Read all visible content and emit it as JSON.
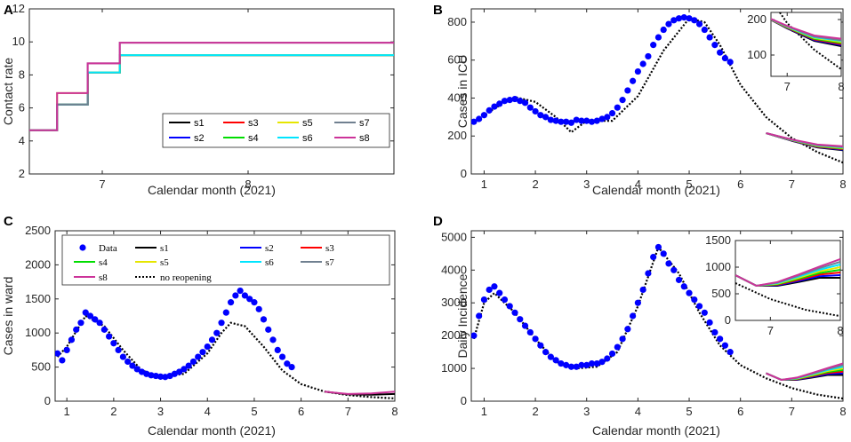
{
  "chart_data": [
    {
      "panel": "A",
      "type": "line",
      "xlabel": "Calendar month (2021)",
      "ylabel": "Contact rate",
      "xlim": [
        6.5,
        9.0
      ],
      "ylim": [
        2,
        12
      ],
      "xticks": [
        7,
        8
      ],
      "yticks": [
        2,
        4,
        6,
        8,
        10,
        12
      ],
      "series": [
        {
          "name": "s1",
          "color": "#000000",
          "x": [
            6.5,
            6.69,
            6.69,
            6.9,
            6.9,
            7.12,
            7.12,
            9.0
          ],
          "y": [
            4.65,
            4.65,
            6.2,
            6.2,
            8.15,
            8.15,
            9.2,
            9.2
          ]
        },
        {
          "name": "s2",
          "color": "#0000ff",
          "x": [
            6.5,
            6.69,
            6.69,
            6.9,
            6.9,
            7.12,
            7.12,
            9.0
          ],
          "y": [
            4.65,
            4.65,
            6.2,
            6.2,
            8.15,
            8.15,
            9.2,
            9.2
          ]
        },
        {
          "name": "s3",
          "color": "#ff0000",
          "x": [
            6.5,
            6.69,
            6.69,
            6.9,
            6.9,
            7.12,
            7.12,
            9.0
          ],
          "y": [
            4.65,
            4.65,
            6.2,
            6.2,
            8.15,
            8.15,
            9.2,
            9.2
          ]
        },
        {
          "name": "s4",
          "color": "#00dd00",
          "x": [
            6.5,
            6.69,
            6.69,
            6.9,
            6.9,
            7.12,
            7.12,
            9.0
          ],
          "y": [
            4.65,
            4.65,
            6.2,
            6.2,
            8.15,
            8.15,
            9.2,
            9.2
          ]
        },
        {
          "name": "s5",
          "color": "#e6e600",
          "x": [
            6.5,
            6.69,
            6.69,
            6.9,
            6.9,
            7.12,
            7.12,
            9.0
          ],
          "y": [
            4.65,
            4.65,
            6.9,
            6.9,
            8.15,
            8.15,
            9.2,
            9.2
          ]
        },
        {
          "name": "s6",
          "color": "#00e5ff",
          "x": [
            6.5,
            6.69,
            6.69,
            6.9,
            6.9,
            7.12,
            7.12,
            9.0
          ],
          "y": [
            4.65,
            4.65,
            6.2,
            6.2,
            8.15,
            8.15,
            9.2,
            9.2
          ]
        },
        {
          "name": "s7",
          "color": "#708090",
          "x": [
            6.5,
            6.69,
            6.69,
            6.9,
            6.9,
            7.12,
            7.12,
            9.0
          ],
          "y": [
            4.65,
            4.65,
            6.2,
            6.2,
            8.7,
            8.7,
            9.95,
            9.95
          ]
        },
        {
          "name": "s8",
          "color": "#cc3399",
          "x": [
            6.5,
            6.69,
            6.69,
            6.9,
            6.9,
            7.12,
            7.12,
            9.0
          ],
          "y": [
            4.65,
            4.65,
            6.9,
            6.9,
            8.7,
            8.7,
            9.95,
            9.95
          ]
        }
      ],
      "legend": [
        "s1",
        "s2",
        "s3",
        "s4",
        "s5",
        "s6",
        "s7",
        "s8"
      ]
    },
    {
      "panel": "B",
      "type": "scatter",
      "xlabel": "Calendar month (2021)",
      "ylabel": "Cases in ICU",
      "xlim": [
        0.75,
        8
      ],
      "ylim": [
        0,
        870
      ],
      "xticks": [
        1,
        2,
        3,
        4,
        5,
        6,
        7,
        8
      ],
      "yticks": [
        0,
        200,
        400,
        600,
        800
      ],
      "data": {
        "x": [
          0.8,
          0.9,
          1.0,
          1.1,
          1.2,
          1.3,
          1.4,
          1.5,
          1.6,
          1.7,
          1.8,
          1.9,
          2.0,
          2.1,
          2.2,
          2.3,
          2.4,
          2.5,
          2.6,
          2.7,
          2.8,
          2.9,
          3.0,
          3.1,
          3.2,
          3.3,
          3.4,
          3.5,
          3.6,
          3.7,
          3.8,
          3.9,
          4.0,
          4.1,
          4.2,
          4.3,
          4.4,
          4.5,
          4.6,
          4.7,
          4.8,
          4.9,
          5.0,
          5.1,
          5.2,
          5.3,
          5.4,
          5.5,
          5.6,
          5.7,
          5.8
        ],
        "y": [
          275,
          290,
          310,
          335,
          355,
          370,
          385,
          390,
          395,
          385,
          375,
          350,
          330,
          310,
          300,
          285,
          280,
          275,
          275,
          270,
          285,
          280,
          280,
          275,
          280,
          290,
          300,
          320,
          350,
          390,
          440,
          490,
          540,
          580,
          620,
          680,
          720,
          760,
          790,
          810,
          820,
          825,
          820,
          810,
          790,
          760,
          720,
          680,
          640,
          610,
          590
        ]
      },
      "baseline": {
        "name": "no reopening",
        "x": [
          0.8,
          1.2,
          1.6,
          2.0,
          2.4,
          2.7,
          3.0,
          3.5,
          4.0,
          4.5,
          5.0,
          5.3,
          5.6,
          6.0,
          6.5,
          7.0,
          7.5,
          8.0
        ],
        "y": [
          270,
          345,
          405,
          380,
          300,
          220,
          280,
          280,
          410,
          650,
          820,
          800,
          680,
          470,
          300,
          190,
          115,
          60
        ]
      },
      "scenarios_x": [
        6.5,
        7.0,
        7.5,
        8.0
      ],
      "scenarios": [
        {
          "name": "s1",
          "y": [
            215,
            175,
            140,
            125
          ]
        },
        {
          "name": "s2",
          "y": [
            215,
            176,
            142,
            128
          ]
        },
        {
          "name": "s3",
          "y": [
            215,
            177,
            144,
            131
          ]
        },
        {
          "name": "s4",
          "y": [
            215,
            178,
            146,
            134
          ]
        },
        {
          "name": "s5",
          "y": [
            215,
            179,
            148,
            137
          ]
        },
        {
          "name": "s6",
          "y": [
            215,
            180,
            150,
            140
          ]
        },
        {
          "name": "s7",
          "y": [
            215,
            181,
            152,
            142
          ]
        },
        {
          "name": "s8",
          "y": [
            215,
            182,
            155,
            146
          ]
        }
      ],
      "inset": {
        "xlim": [
          6.7,
          8
        ],
        "ylim": [
          40,
          220
        ],
        "xticks": [
          7,
          8
        ],
        "yticks": [
          100,
          200
        ]
      }
    },
    {
      "panel": "C",
      "type": "scatter",
      "xlabel": "Calendar month (2021)",
      "ylabel": "Cases in ward",
      "xlim": [
        0.75,
        8
      ],
      "ylim": [
        0,
        2500
      ],
      "xticks": [
        1,
        2,
        3,
        4,
        5,
        6,
        7,
        8
      ],
      "yticks": [
        0,
        500,
        1000,
        1500,
        2000,
        2500
      ],
      "data": {
        "x": [
          0.8,
          0.9,
          1.0,
          1.1,
          1.2,
          1.3,
          1.4,
          1.5,
          1.6,
          1.7,
          1.8,
          1.9,
          2.0,
          2.1,
          2.2,
          2.3,
          2.4,
          2.5,
          2.6,
          2.7,
          2.8,
          2.9,
          3.0,
          3.1,
          3.2,
          3.3,
          3.4,
          3.5,
          3.6,
          3.7,
          3.8,
          3.9,
          4.0,
          4.1,
          4.2,
          4.3,
          4.4,
          4.5,
          4.6,
          4.7,
          4.8,
          4.9,
          5.0,
          5.1,
          5.2,
          5.3,
          5.4,
          5.5,
          5.6,
          5.7,
          5.8
        ],
        "y": [
          700,
          600,
          750,
          900,
          1050,
          1150,
          1300,
          1250,
          1200,
          1150,
          1050,
          950,
          850,
          750,
          650,
          580,
          520,
          470,
          430,
          400,
          380,
          370,
          360,
          355,
          370,
          400,
          430,
          470,
          520,
          580,
          650,
          720,
          800,
          900,
          1000,
          1150,
          1300,
          1450,
          1550,
          1620,
          1550,
          1500,
          1450,
          1350,
          1200,
          1050,
          900,
          750,
          650,
          550,
          500
        ]
      },
      "baseline": {
        "name": "no reopening",
        "x": [
          0.8,
          1.0,
          1.4,
          1.8,
          2.2,
          2.6,
          3.0,
          3.5,
          4.0,
          4.3,
          4.5,
          4.8,
          5.2,
          5.6,
          6.0,
          6.5,
          7.0,
          7.5,
          8.0
        ],
        "y": [
          650,
          800,
          1250,
          1100,
          750,
          450,
          360,
          400,
          700,
          1000,
          1150,
          1100,
          800,
          450,
          250,
          140,
          90,
          60,
          40
        ]
      },
      "scenarios_x": [
        6.5,
        7.0,
        7.5,
        8.0
      ],
      "scenarios": [
        {
          "name": "s1",
          "y": [
            140,
            100,
            95,
            105
          ]
        },
        {
          "name": "s8",
          "y": [
            140,
            105,
            115,
            140
          ]
        }
      ],
      "legend": [
        "Data",
        "s1",
        "s2",
        "s3",
        "s4",
        "s5",
        "s6",
        "s7",
        "s8",
        "no reopening"
      ]
    },
    {
      "panel": "D",
      "type": "scatter",
      "xlabel": "Calendar month (2021)",
      "ylabel": "Daily Incidence",
      "xlim": [
        0.75,
        8
      ],
      "ylim": [
        0,
        5200
      ],
      "xticks": [
        1,
        2,
        3,
        4,
        5,
        6,
        7,
        8
      ],
      "yticks": [
        0,
        1000,
        2000,
        3000,
        4000,
        5000
      ],
      "data": {
        "x": [
          0.8,
          0.9,
          1.0,
          1.1,
          1.2,
          1.3,
          1.4,
          1.5,
          1.6,
          1.7,
          1.8,
          1.9,
          2.0,
          2.1,
          2.2,
          2.3,
          2.4,
          2.5,
          2.6,
          2.7,
          2.8,
          2.9,
          3.0,
          3.1,
          3.2,
          3.3,
          3.4,
          3.5,
          3.6,
          3.7,
          3.8,
          3.9,
          4.0,
          4.1,
          4.2,
          4.3,
          4.4,
          4.5,
          4.6,
          4.7,
          4.8,
          4.9,
          5.0,
          5.1,
          5.2,
          5.3,
          5.4,
          5.5,
          5.6,
          5.7,
          5.8
        ],
        "y": [
          2000,
          2600,
          3100,
          3400,
          3500,
          3300,
          3100,
          2900,
          2700,
          2500,
          2300,
          2100,
          1900,
          1700,
          1500,
          1350,
          1250,
          1150,
          1100,
          1050,
          1050,
          1100,
          1100,
          1150,
          1150,
          1200,
          1300,
          1450,
          1650,
          1900,
          2200,
          2600,
          3000,
          3400,
          3900,
          4400,
          4700,
          4500,
          4200,
          4000,
          3700,
          3500,
          3300,
          3100,
          2900,
          2700,
          2400,
          2100,
          1900,
          1700,
          1500
        ]
      },
      "baseline": {
        "name": "no reopening",
        "x": [
          0.8,
          1.0,
          1.2,
          1.6,
          2.0,
          2.4,
          2.8,
          3.2,
          3.6,
          4.0,
          4.4,
          4.8,
          5.2,
          5.6,
          6.0,
          6.5,
          7.0,
          7.5,
          8.0
        ],
        "y": [
          1900,
          3000,
          3300,
          2700,
          1900,
          1200,
          1000,
          1050,
          1500,
          2900,
          4700,
          3900,
          2700,
          1700,
          1100,
          700,
          400,
          200,
          80
        ]
      },
      "scenarios_x": [
        6.5,
        6.8,
        7.1,
        7.4,
        7.7,
        8.0
      ],
      "scenarios": [
        {
          "name": "s1",
          "y": [
            850,
            650,
            650,
            720,
            800,
            800
          ]
        },
        {
          "name": "s2",
          "y": [
            850,
            650,
            660,
            740,
            830,
            850
          ]
        },
        {
          "name": "s3",
          "y": [
            850,
            650,
            670,
            760,
            860,
            900
          ]
        },
        {
          "name": "s4",
          "y": [
            850,
            650,
            680,
            780,
            890,
            950
          ]
        },
        {
          "name": "s5",
          "y": [
            850,
            650,
            690,
            800,
            920,
            1000
          ]
        },
        {
          "name": "s6",
          "y": [
            850,
            650,
            700,
            820,
            950,
            1050
          ]
        },
        {
          "name": "s7",
          "y": [
            850,
            650,
            710,
            840,
            980,
            1100
          ]
        },
        {
          "name": "s8",
          "y": [
            850,
            650,
            720,
            860,
            1010,
            1150
          ]
        }
      ],
      "inset": {
        "xlim": [
          6.5,
          8
        ],
        "ylim": [
          0,
          1500
        ],
        "xticks": [
          7,
          8
        ],
        "yticks": [
          0,
          500,
          1000,
          1500
        ]
      }
    }
  ],
  "colors": {
    "s1": "#000000",
    "s2": "#0000ff",
    "s3": "#ff0000",
    "s4": "#00dd00",
    "s5": "#e6e600",
    "s6": "#00e5ff",
    "s7": "#708090",
    "s8": "#cc3399",
    "data": "#0000ff"
  }
}
